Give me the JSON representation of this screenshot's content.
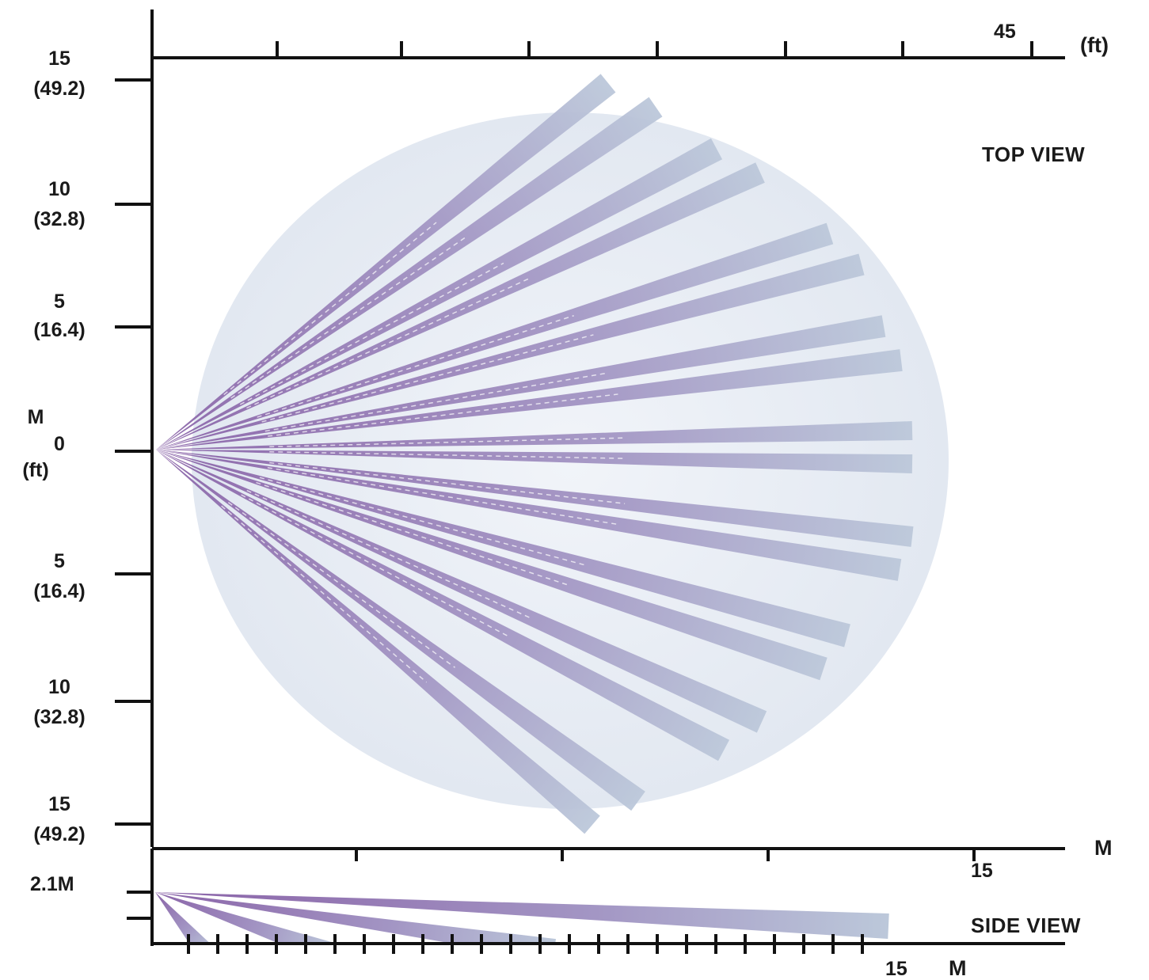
{
  "top_view": {
    "label": "TOP VIEW",
    "y_axis_unit_top": "M",
    "y_axis_unit_bottom": "(ft)",
    "y_ticks": [
      {
        "m": "15",
        "ft": "(49.2)"
      },
      {
        "m": "10",
        "ft": "(32.8)"
      },
      {
        "m": "5",
        "ft": "(16.4)"
      },
      {
        "m": "0",
        "ft": ""
      },
      {
        "m": "5",
        "ft": "(16.4)"
      },
      {
        "m": "10",
        "ft": "(32.8)"
      },
      {
        "m": "15",
        "ft": "(49.2)"
      }
    ],
    "ft_axis_end_label": "45",
    "ft_axis_unit": "(ft)",
    "m_axis_end_label": "15",
    "m_axis_unit": "M"
  },
  "side_view": {
    "label": "SIDE VIEW",
    "height_label": "2.1M",
    "x_axis_end_label": "15",
    "x_axis_unit": "M"
  },
  "colors": {
    "beam_dark": "#8a63a8",
    "beam_mid": "#a396c4",
    "beam_light": "#b9c6d8",
    "coverage": "#e6ebf3",
    "axis": "#111111"
  }
}
